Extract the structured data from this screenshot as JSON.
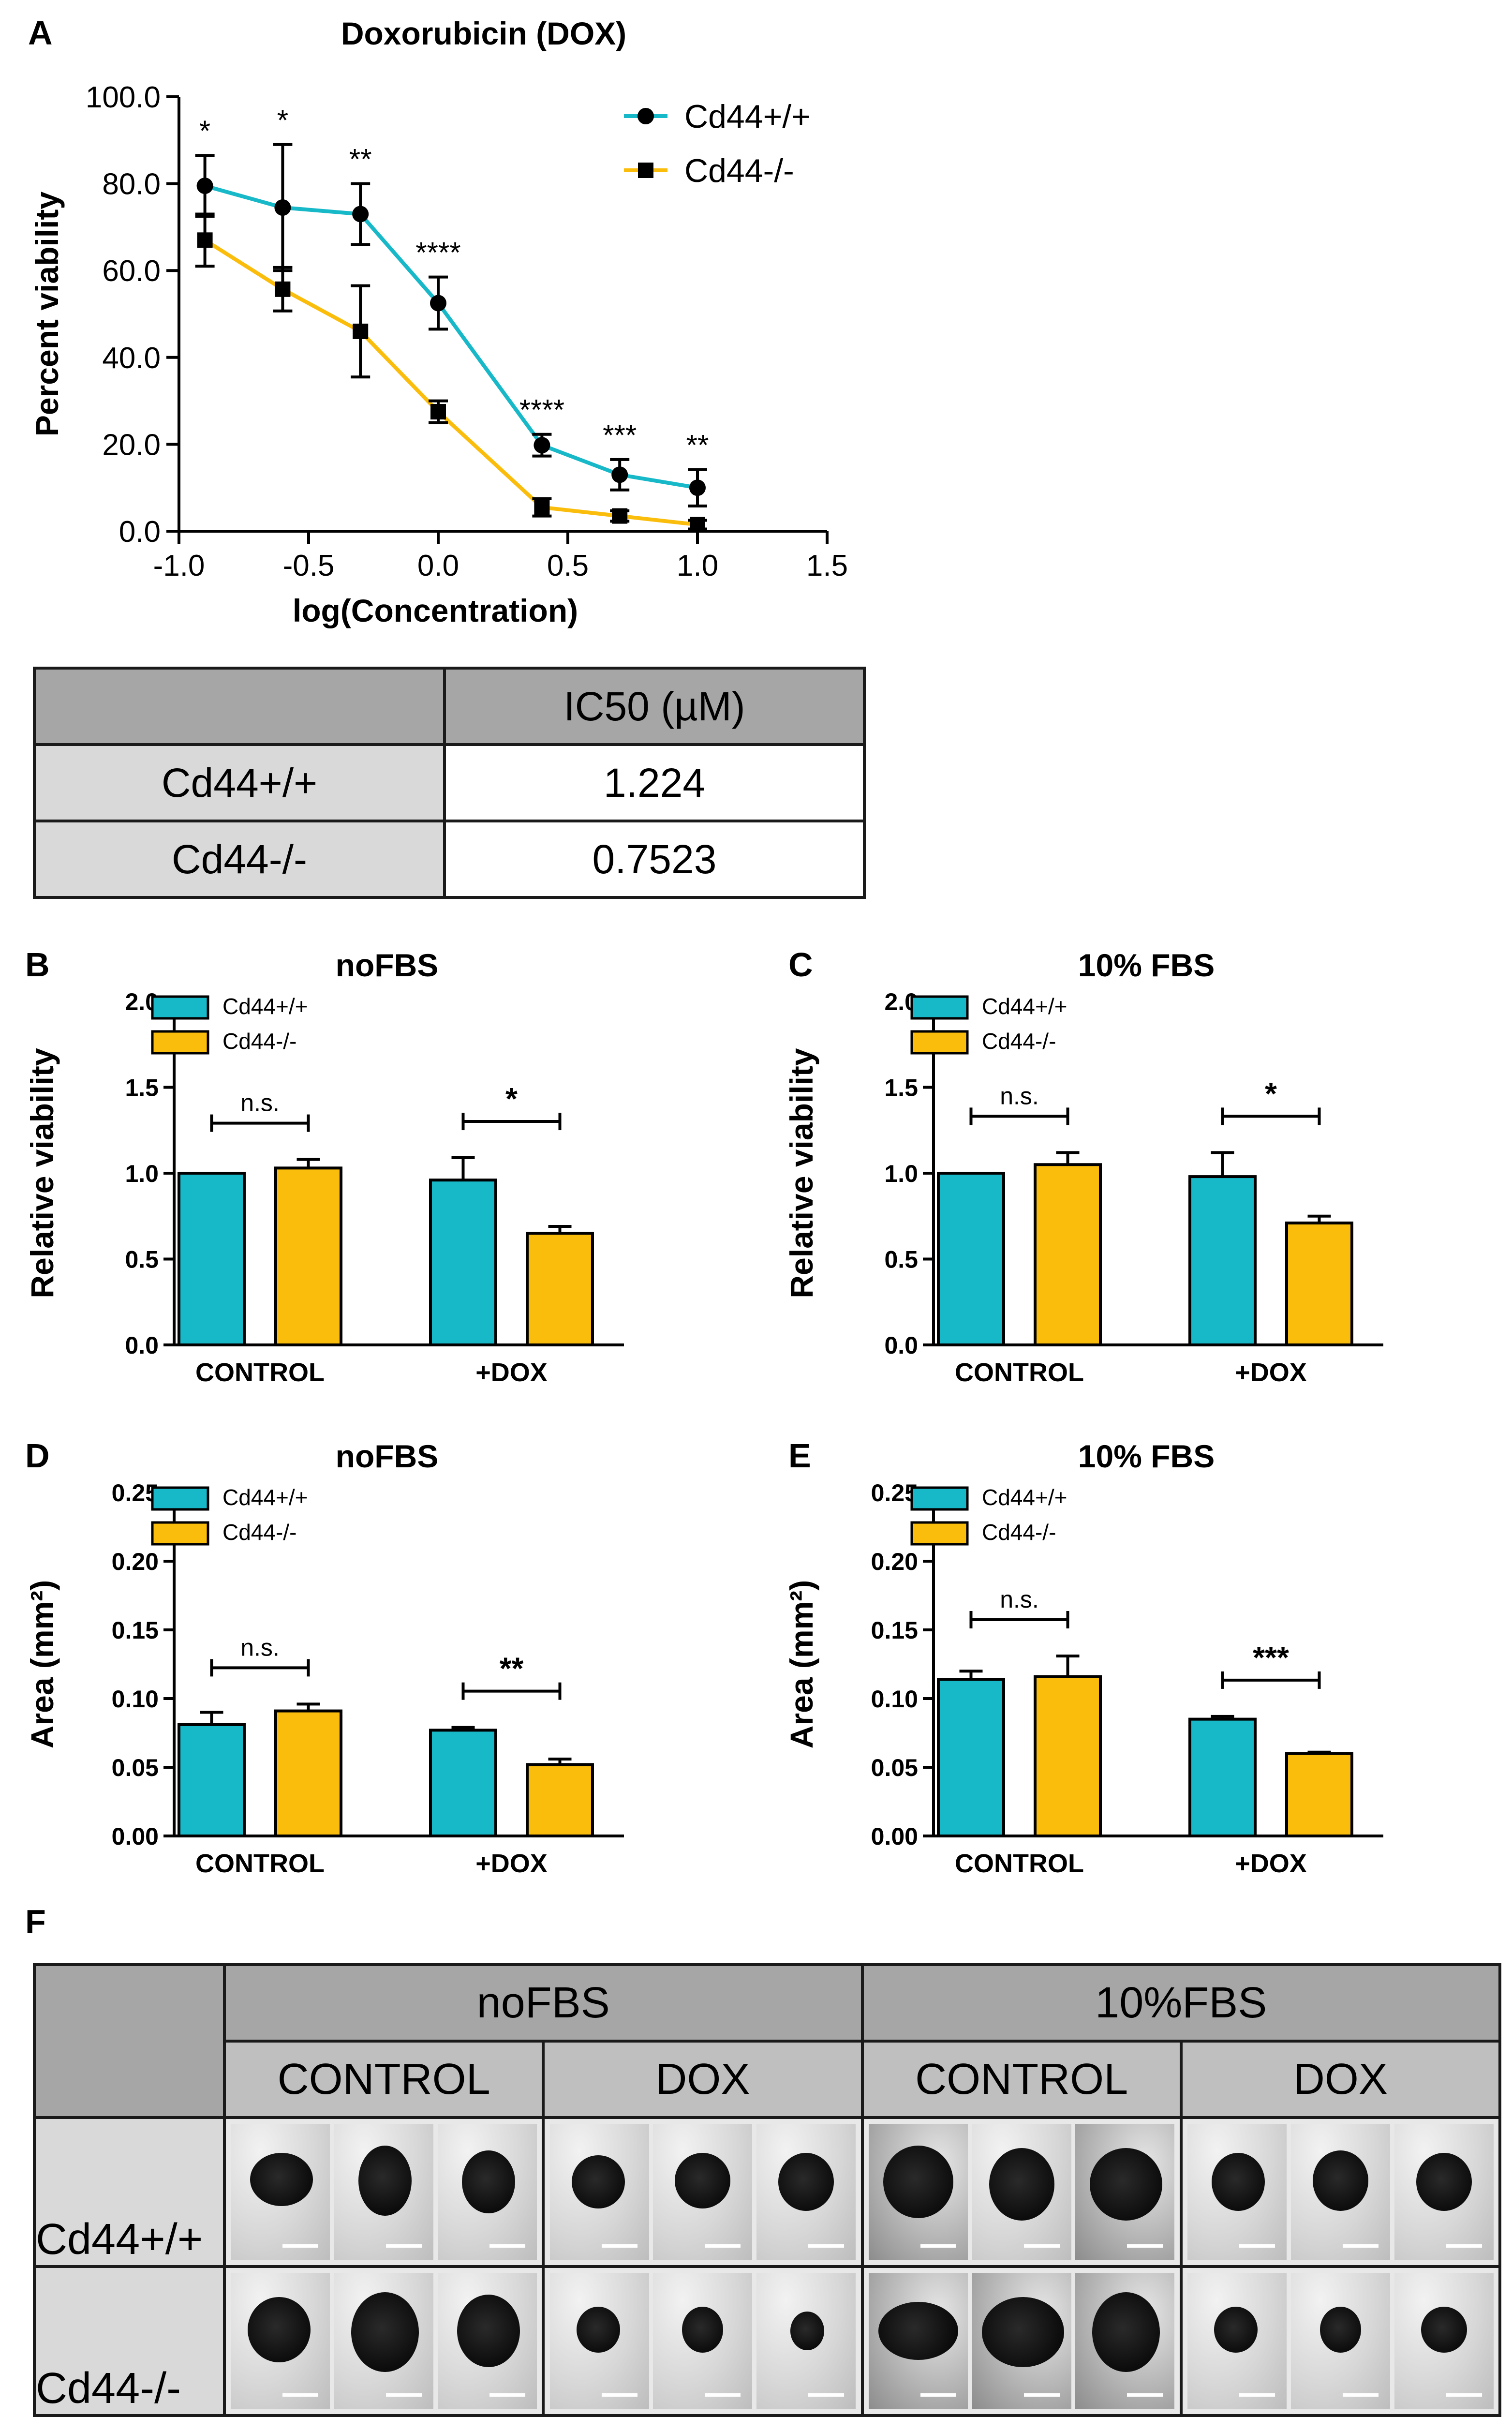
{
  "colors": {
    "wt": "#17b8c8",
    "ko": "#fbbd0c"
  },
  "panel_labels": {
    "A": "A",
    "B": "B",
    "C": "C",
    "D": "D",
    "E": "E",
    "F": "F"
  },
  "chart_data": [
    {
      "id": "A",
      "type": "line",
      "title": "Doxorubicin (DOX)",
      "xlabel": "log(Concentration)",
      "ylabel": "Percent viability",
      "xlim": [
        -1.0,
        1.5
      ],
      "ylim": [
        0.0,
        100.0
      ],
      "xticks": [
        "-1.0",
        "-0.5",
        "0.0",
        "0.5",
        "1.0",
        "1.5"
      ],
      "yticks": [
        "0.0",
        "20.0",
        "40.0",
        "60.0",
        "80.0",
        "100.0"
      ],
      "x": [
        -0.9,
        -0.6,
        -0.3,
        0.0,
        0.4,
        0.7,
        1.0
      ],
      "series": [
        {
          "name": "Cd44+/+",
          "marker": "circle",
          "values": [
            79.5,
            74.5,
            73.0,
            52.5,
            19.8,
            13.0,
            10.0
          ],
          "errors": [
            7.0,
            14.5,
            7.0,
            6.0,
            2.5,
            3.5,
            4.2
          ]
        },
        {
          "name": "Cd44-/-",
          "marker": "square",
          "values": [
            67.0,
            55.7,
            46.0,
            27.5,
            5.5,
            3.5,
            1.5
          ],
          "errors": [
            6.0,
            5.0,
            10.5,
            2.5,
            2.0,
            1.2,
            1.0
          ]
        }
      ],
      "annotations": [
        "*",
        "*",
        "**",
        "****",
        "****",
        "***",
        "**"
      ]
    },
    {
      "id": "B",
      "type": "bar",
      "title": "noFBS",
      "ylabel": "Relative viability",
      "categories": [
        "CONTROL",
        "+DOX"
      ],
      "ylim": [
        0.0,
        2.0
      ],
      "yticks": [
        "0.0",
        "0.5",
        "1.0",
        "1.5",
        "2.0"
      ],
      "series": [
        {
          "name": "Cd44+/+",
          "values": [
            1.0,
            0.96
          ],
          "errors": [
            0.0,
            0.13
          ]
        },
        {
          "name": "Cd44-/-",
          "values": [
            1.03,
            0.65
          ],
          "errors": [
            0.05,
            0.04
          ]
        }
      ],
      "significance": [
        "n.s.",
        "*"
      ]
    },
    {
      "id": "C",
      "type": "bar",
      "title": "10% FBS",
      "ylabel": "Relative viability",
      "categories": [
        "CONTROL",
        "+DOX"
      ],
      "ylim": [
        0.0,
        2.0
      ],
      "yticks": [
        "0.0",
        "0.5",
        "1.0",
        "1.5",
        "2.0"
      ],
      "series": [
        {
          "name": "Cd44+/+",
          "values": [
            1.0,
            0.98
          ],
          "errors": [
            0.0,
            0.14
          ]
        },
        {
          "name": "Cd44-/-",
          "values": [
            1.05,
            0.71
          ],
          "errors": [
            0.07,
            0.04
          ]
        }
      ],
      "significance": [
        "n.s.",
        "*"
      ]
    },
    {
      "id": "D",
      "type": "bar",
      "title": "noFBS",
      "ylabel": "Area (mm²)",
      "categories": [
        "CONTROL",
        "+DOX"
      ],
      "ylim": [
        0.0,
        0.25
      ],
      "yticks": [
        "0.00",
        "0.05",
        "0.10",
        "0.15",
        "0.20",
        "0.25"
      ],
      "series": [
        {
          "name": "Cd44+/+",
          "values": [
            0.081,
            0.077
          ],
          "errors": [
            0.009,
            0.002
          ]
        },
        {
          "name": "Cd44-/-",
          "values": [
            0.091,
            0.052
          ],
          "errors": [
            0.005,
            0.004
          ]
        }
      ],
      "significance": [
        "n.s.",
        "**"
      ]
    },
    {
      "id": "E",
      "type": "bar",
      "title": "10% FBS",
      "ylabel": "Area (mm²)",
      "categories": [
        "CONTROL",
        "+DOX"
      ],
      "ylim": [
        0.0,
        0.25
      ],
      "yticks": [
        "0.00",
        "0.05",
        "0.10",
        "0.15",
        "0.20",
        "0.25"
      ],
      "series": [
        {
          "name": "Cd44+/+",
          "values": [
            0.114,
            0.085
          ],
          "errors": [
            0.006,
            0.002
          ]
        },
        {
          "name": "Cd44-/-",
          "values": [
            0.116,
            0.06
          ],
          "errors": [
            0.015,
            0.001
          ]
        }
      ],
      "significance": [
        "n.s.",
        "***"
      ]
    }
  ],
  "ic50_table": {
    "header": "IC50 (µM)",
    "rows": [
      {
        "label": "Cd44+/+",
        "value": "1.224"
      },
      {
        "label": "Cd44-/-",
        "value": "0.7523"
      }
    ]
  },
  "image_table": {
    "groups": [
      "noFBS",
      "10%FBS"
    ],
    "conditions": [
      "CONTROL",
      "DOX",
      "CONTROL",
      "DOX"
    ],
    "rows": [
      "Cd44+/+",
      "Cd44-/-"
    ]
  }
}
